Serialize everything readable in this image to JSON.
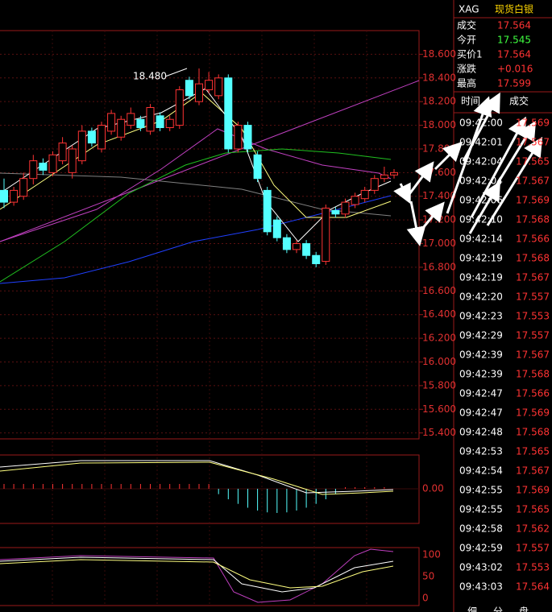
{
  "header": {
    "symbol": "XAG",
    "name": "现货白银"
  },
  "quote": [
    {
      "label": "成交",
      "value": "17.564"
    },
    {
      "label": "今开",
      "value": "17.545"
    },
    {
      "label": "买价1",
      "value": "17.564"
    },
    {
      "label": "涨跌",
      "value": "+0.016"
    },
    {
      "label": "最高",
      "value": "17.599"
    }
  ],
  "trades": {
    "headers": [
      "时间",
      "成交"
    ],
    "rows": [
      [
        "09:42:00",
        "17.569"
      ],
      [
        "09:42:01",
        "17.567"
      ],
      [
        "09:42:04",
        "17.565"
      ],
      [
        "09:42:04",
        "17.567"
      ],
      [
        "09:42:06",
        "17.569"
      ],
      [
        "09:42:10",
        "17.568"
      ],
      [
        "09:42:14",
        "17.566"
      ],
      [
        "09:42:19",
        "17.568"
      ],
      [
        "09:42:19",
        "17.567"
      ],
      [
        "09:42:20",
        "17.557"
      ],
      [
        "09:42:23",
        "17.553"
      ],
      [
        "09:42:29",
        "17.557"
      ],
      [
        "09:42:39",
        "17.567"
      ],
      [
        "09:42:39",
        "17.568"
      ],
      [
        "09:42:47",
        "17.566"
      ],
      [
        "09:42:47",
        "17.569"
      ],
      [
        "09:42:48",
        "17.568"
      ],
      [
        "09:42:53",
        "17.565"
      ],
      [
        "09:42:54",
        "17.567"
      ],
      [
        "09:42:55",
        "17.569"
      ],
      [
        "09:42:55",
        "17.565"
      ],
      [
        "09:42:58",
        "17.562"
      ],
      [
        "09:42:59",
        "17.557"
      ],
      [
        "09:43:02",
        "17.553"
      ],
      [
        "09:43:03",
        "17.564"
      ]
    ]
  },
  "bottom_tabs": [
    "细",
    "分",
    "盘"
  ],
  "chart_data": {
    "type": "candlestick",
    "up_color": "#ff3333",
    "down_color": "#54ffff",
    "ylim": [
      15.35,
      18.8
    ],
    "yticks": [
      {
        "value": 18.6,
        "label": "18.600"
      },
      {
        "value": 18.4,
        "label": "18.400"
      },
      {
        "value": 18.2,
        "label": "18.200"
      },
      {
        "value": 18,
        "label": "18.000"
      },
      {
        "value": 17.8,
        "label": "17.800"
      },
      {
        "value": 17.6,
        "label": "17.600"
      },
      {
        "value": 17.4,
        "label": "17.400"
      },
      {
        "value": 17.2,
        "label": "17.200"
      },
      {
        "value": 17,
        "label": "17.000"
      },
      {
        "value": 16.8,
        "label": "16.800"
      },
      {
        "value": 16.6,
        "label": "16.600"
      },
      {
        "value": 16.4,
        "label": "16.400"
      },
      {
        "value": 16.2,
        "label": "16.200"
      },
      {
        "value": 16,
        "label": "16.000"
      },
      {
        "value": 15.8,
        "label": "15.800"
      },
      {
        "value": 15.6,
        "label": "15.600"
      },
      {
        "value": 15.4,
        "label": "15.400"
      }
    ],
    "annotation": {
      "value": 18.48,
      "label": "18.480"
    },
    "candles": [
      [
        17.45,
        17.55,
        17.3,
        17.35
      ],
      [
        17.35,
        17.48,
        17.32,
        17.45
      ],
      [
        17.4,
        17.6,
        17.37,
        17.55
      ],
      [
        17.55,
        17.75,
        17.5,
        17.7
      ],
      [
        17.68,
        17.72,
        17.58,
        17.62
      ],
      [
        17.6,
        17.78,
        17.57,
        17.75
      ],
      [
        17.7,
        17.9,
        17.67,
        17.85
      ],
      [
        17.6,
        17.83,
        17.55,
        17.8
      ],
      [
        17.7,
        18,
        17.67,
        17.95
      ],
      [
        17.95,
        17.98,
        17.82,
        17.85
      ],
      [
        17.8,
        18.03,
        17.77,
        18
      ],
      [
        17.95,
        18.13,
        17.92,
        18.1
      ],
      [
        17.9,
        18.08,
        17.87,
        18.05
      ],
      [
        18,
        18.15,
        17.97,
        18.1
      ],
      [
        18.05,
        18.08,
        17.95,
        17.98
      ],
      [
        17.95,
        18.18,
        17.92,
        18.15
      ],
      [
        18.08,
        18.11,
        17.95,
        17.98
      ],
      [
        17.98,
        18.08,
        17.95,
        18.05
      ],
      [
        18,
        18.33,
        17.97,
        18.3
      ],
      [
        18.38,
        18.41,
        18.22,
        18.25
      ],
      [
        18.2,
        18.48,
        18.17,
        18.35
      ],
      [
        18.3,
        18.45,
        18.27,
        18.38
      ],
      [
        18.25,
        18.43,
        18.22,
        18.4
      ],
      [
        18.4,
        18.43,
        17.77,
        17.8
      ],
      [
        17.8,
        18.03,
        17.77,
        18
      ],
      [
        18,
        18.03,
        17.77,
        17.8
      ],
      [
        17.75,
        17.78,
        17.52,
        17.55
      ],
      [
        17.45,
        17.48,
        17.07,
        17.1
      ],
      [
        17.2,
        17.23,
        17.02,
        17.05
      ],
      [
        17.05,
        17.08,
        16.92,
        16.95
      ],
      [
        16.95,
        17.03,
        16.92,
        17
      ],
      [
        17,
        17.03,
        16.87,
        16.9
      ],
      [
        16.9,
        16.93,
        16.8,
        16.83
      ],
      [
        16.85,
        17.33,
        16.82,
        17.3
      ],
      [
        17.28,
        17.31,
        17.22,
        17.25
      ],
      [
        17.25,
        17.38,
        17.22,
        17.35
      ],
      [
        17.33,
        17.43,
        17.3,
        17.4
      ],
      [
        17.38,
        17.48,
        17.35,
        17.45
      ],
      [
        17.45,
        17.58,
        17.42,
        17.55
      ],
      [
        17.55,
        17.65,
        17.52,
        17.58
      ],
      [
        17.58,
        17.63,
        17.55,
        17.6
      ]
    ],
    "macd": {
      "ticks": [
        {
          "value": 0,
          "label": "0.00"
        }
      ]
    },
    "kdj": {
      "ticks": [
        100,
        50,
        0
      ]
    }
  }
}
